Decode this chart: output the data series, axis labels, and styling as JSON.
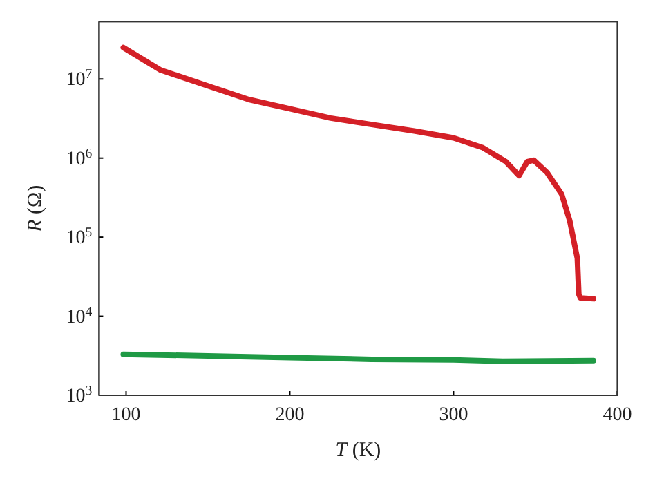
{
  "chart_data": {
    "type": "line",
    "xlabel": "T (K)",
    "ylabel": "R (Ω)",
    "xlim": [
      83.5,
      400
    ],
    "xticks": [
      100,
      200,
      300,
      400
    ],
    "ylim": [
      1000,
      53000000
    ],
    "log": true,
    "yticks": [
      {
        "value": 1000,
        "label": "10$^{3}$"
      },
      {
        "value": 10000,
        "label": "10$^{4}$"
      },
      {
        "value": 100000,
        "label": "10$^{5}$"
      },
      {
        "value": 1000000,
        "label": "10$^{6}$"
      },
      {
        "value": 10000000,
        "label": "10$^{7}$"
      }
    ],
    "grid": false,
    "marker": "none",
    "line_style": "solid",
    "series": [
      {
        "color": "#d42027",
        "x": [
          98.3,
          121,
          149,
          175,
          200,
          225,
          248,
          276,
          300,
          318,
          332,
          340,
          345,
          349,
          357,
          366,
          371,
          375.6,
          376.5,
          377.5,
          385.5
        ],
        "values": [
          25000000,
          13000000,
          8300000,
          5500000,
          4200000,
          3200000,
          2700000,
          2200000,
          1800000,
          1350000,
          900000,
          600000,
          900000,
          940000,
          660000,
          350000,
          160000,
          54000,
          19000,
          17000,
          16600
        ]
      },
      {
        "color": "#1f9a45",
        "x": [
          98.3,
          150,
          200,
          250,
          300,
          330,
          385.5
        ],
        "values": [
          3300,
          3150,
          3000,
          2850,
          2800,
          2700,
          2750
        ]
      }
    ]
  }
}
